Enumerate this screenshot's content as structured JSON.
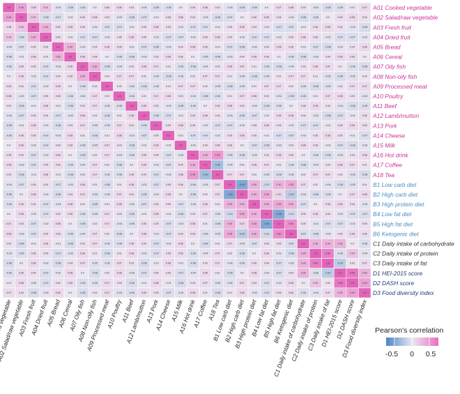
{
  "chart_data": {
    "type": "heatmap",
    "labels": [
      "A01 Cooked vegetable",
      "A02 Salad/raw vegetable",
      "A03 Fresh fruit",
      "A04 Dried fruit",
      "A05 Bread",
      "A06 Cereal",
      "A07 Oily fish",
      "A08 Non-oily fish",
      "A09 Processed meat",
      "A10 Poultry",
      "A11 Beef",
      "A12 Lamb/mutton",
      "A13 Pork",
      "A14 Cheese",
      "A15 Milk",
      "A16 Hot drink",
      "A17 Coffee",
      "A18 Tea",
      "B1 Low carb diet",
      "B2 High carb diet",
      "B3 High protein diet",
      "B4 Low fat diet",
      "B5 High fat diet",
      "B6 Ketogenic diet",
      "C1 Daily intake of carbohydrate",
      "C2 Daily intake of protein",
      "C3 Daily intake of fat",
      "D1 HEI-2015 score",
      "D2 DASH score",
      "D3 Food diversity index"
    ],
    "label_groups": {
      "A": "#cc3399",
      "B": "#4a8fc4",
      "C": "#333333",
      "D": "#1f3c6e"
    },
    "color_scale": {
      "low": "#4a86c5",
      "mid": "#ebe6f0",
      "high": "#e86fc0",
      "min": -0.7,
      "max": 0.7
    },
    "legend": {
      "title": "Pearson's correlation",
      "ticks": [
        "-0.5",
        "0",
        "0.5"
      ]
    },
    "notable_values": [
      {
        "row": 0,
        "col": 1,
        "value": 0.4
      },
      {
        "row": 0,
        "col": 3,
        "value": 0.2
      },
      {
        "row": 1,
        "col": 2,
        "value": 0.2
      },
      {
        "row": 2,
        "col": 3,
        "value": 0.3
      },
      {
        "row": 4,
        "col": 5,
        "value": 0.3
      },
      {
        "row": 6,
        "col": 7,
        "value": 0.3
      },
      {
        "row": 15,
        "col": 16,
        "value": 0.3
      },
      {
        "row": 15,
        "col": 17,
        "value": 0.45
      },
      {
        "row": 16,
        "col": 17,
        "value": -0.3
      },
      {
        "row": 18,
        "col": 19,
        "value": -0.45
      },
      {
        "row": 18,
        "col": 20,
        "value": 0.3
      },
      {
        "row": 18,
        "col": 21,
        "value": -0.1
      },
      {
        "row": 18,
        "col": 22,
        "value": 0.3
      },
      {
        "row": 18,
        "col": 23,
        "value": 0.35
      },
      {
        "row": 19,
        "col": 20,
        "value": 0.3
      },
      {
        "row": 19,
        "col": 21,
        "value": 0.35
      },
      {
        "row": 19,
        "col": 22,
        "value": 0.1
      },
      {
        "row": 19,
        "col": 23,
        "value": -0.2
      },
      {
        "row": 20,
        "col": 21,
        "value": 0.3
      },
      {
        "row": 20,
        "col": 22,
        "value": 0.35
      },
      {
        "row": 20,
        "col": 23,
        "value": 0.3
      },
      {
        "row": 21,
        "col": 22,
        "value": -0.45
      },
      {
        "row": 21,
        "col": 23,
        "value": -0.1
      },
      {
        "row": 22,
        "col": 23,
        "value": 0.5
      },
      {
        "row": 24,
        "col": 25,
        "value": 0.3
      },
      {
        "row": 24,
        "col": 26,
        "value": 0.3
      },
      {
        "row": 24,
        "col": 27,
        "value": 0.3
      },
      {
        "row": 25,
        "col": 26,
        "value": 0.6
      },
      {
        "row": 25,
        "col": 28,
        "value": 0.2
      },
      {
        "row": 26,
        "col": 27,
        "value": -0.2
      },
      {
        "row": 27,
        "col": 28,
        "value": 0.65
      },
      {
        "row": 27,
        "col": 29,
        "value": 0.3
      },
      {
        "row": 28,
        "col": 29,
        "value": 0.4
      }
    ]
  }
}
